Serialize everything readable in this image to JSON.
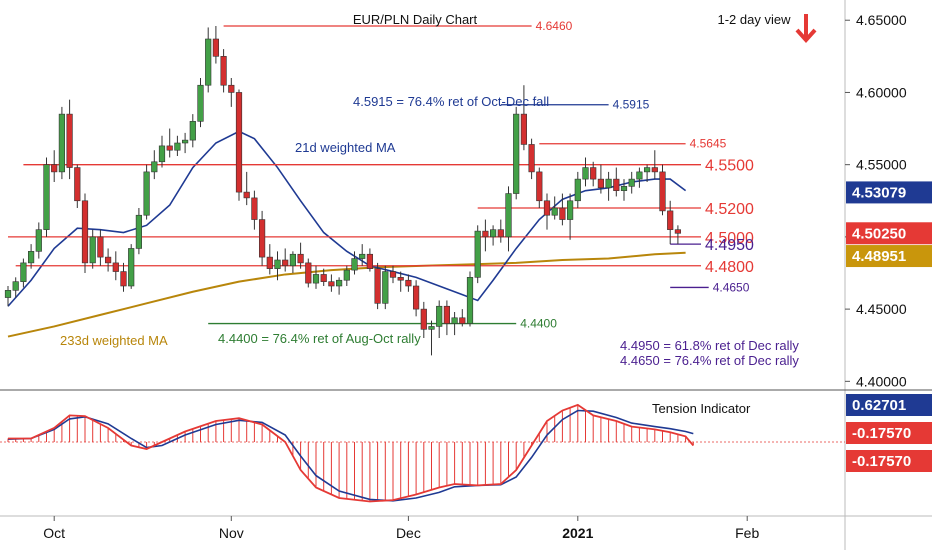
{
  "chart_data": {
    "type": "candlestick",
    "title": "EUR/PLN Daily Chart",
    "view_label": "1-2 day view",
    "view_direction": "down",
    "y_axis": {
      "range": [
        4.394,
        4.664
      ],
      "ticks": [
        4.4,
        4.45,
        4.5,
        4.55,
        4.6,
        4.65
      ],
      "tick_labels": [
        "4.40000",
        "4.45000",
        "4.50000",
        "4.55000",
        "4.60000",
        "4.65000"
      ],
      "position": "right",
      "grid": false
    },
    "x_axis": {
      "labels": [
        "Oct",
        "Nov",
        "Dec",
        "2021",
        "Feb"
      ],
      "label_bars": [
        6,
        29,
        52,
        74,
        96
      ]
    },
    "colors": {
      "up": "#43a047",
      "down": "#d32f2f",
      "resistance": "#e53935",
      "support_purple": "#4a1f8f",
      "ma21": "#1f3a93",
      "ma233": "#b8860b",
      "tension_indicator": "#e53935",
      "tension_signal": "#1f3a93",
      "tension_bars": "#e53935",
      "price_tag_blue": "#1f3a93",
      "price_tag_red": "#e53935",
      "price_tag_gold": "#c9960c"
    },
    "candles": [
      [
        4.458,
        4.466,
        4.452,
        4.463
      ],
      [
        4.463,
        4.472,
        4.458,
        4.469
      ],
      [
        4.469,
        4.485,
        4.465,
        4.482
      ],
      [
        4.482,
        4.495,
        4.478,
        4.49
      ],
      [
        4.49,
        4.51,
        4.485,
        4.505
      ],
      [
        4.505,
        4.555,
        4.5,
        4.55
      ],
      [
        4.55,
        4.56,
        4.538,
        4.545
      ],
      [
        4.545,
        4.59,
        4.54,
        4.585
      ],
      [
        4.585,
        4.595,
        4.54,
        4.548
      ],
      [
        4.548,
        4.55,
        4.52,
        4.525
      ],
      [
        4.525,
        4.53,
        4.475,
        4.482
      ],
      [
        4.482,
        4.505,
        4.478,
        4.5
      ],
      [
        4.5,
        4.505,
        4.48,
        4.486
      ],
      [
        4.486,
        4.492,
        4.476,
        4.482
      ],
      [
        4.482,
        4.49,
        4.47,
        4.476
      ],
      [
        4.476,
        4.482,
        4.462,
        4.466
      ],
      [
        4.466,
        4.495,
        4.464,
        4.492
      ],
      [
        4.492,
        4.52,
        4.488,
        4.515
      ],
      [
        4.515,
        4.55,
        4.512,
        4.545
      ],
      [
        4.545,
        4.56,
        4.54,
        4.552
      ],
      [
        4.552,
        4.57,
        4.548,
        4.563
      ],
      [
        4.563,
        4.575,
        4.555,
        4.56
      ],
      [
        4.56,
        4.57,
        4.556,
        4.565
      ],
      [
        4.565,
        4.572,
        4.558,
        4.567
      ],
      [
        4.567,
        4.585,
        4.562,
        4.58
      ],
      [
        4.58,
        4.61,
        4.576,
        4.605
      ],
      [
        4.605,
        4.645,
        4.6,
        4.637
      ],
      [
        4.637,
        4.646,
        4.62,
        4.625
      ],
      [
        4.625,
        4.63,
        4.6,
        4.605
      ],
      [
        4.605,
        4.61,
        4.59,
        4.6
      ],
      [
        4.6,
        4.602,
        4.525,
        4.531
      ],
      [
        4.531,
        4.545,
        4.522,
        4.527
      ],
      [
        4.527,
        4.532,
        4.505,
        4.512
      ],
      [
        4.512,
        4.518,
        4.48,
        4.486
      ],
      [
        4.486,
        4.495,
        4.474,
        4.478
      ],
      [
        4.478,
        4.49,
        4.47,
        4.484
      ],
      [
        4.484,
        4.492,
        4.476,
        4.48
      ],
      [
        4.48,
        4.49,
        4.475,
        4.488
      ],
      [
        4.488,
        4.496,
        4.478,
        4.482
      ],
      [
        4.482,
        4.485,
        4.465,
        4.468
      ],
      [
        4.468,
        4.48,
        4.464,
        4.474
      ],
      [
        4.474,
        4.478,
        4.466,
        4.469
      ],
      [
        4.469,
        4.474,
        4.462,
        4.466
      ],
      [
        4.466,
        4.472,
        4.46,
        4.47
      ],
      [
        4.47,
        4.48,
        4.466,
        4.477
      ],
      [
        4.477,
        4.49,
        4.474,
        4.485
      ],
      [
        4.485,
        4.495,
        4.48,
        4.488
      ],
      [
        4.488,
        4.492,
        4.476,
        4.478
      ],
      [
        4.478,
        4.482,
        4.45,
        4.454
      ],
      [
        4.454,
        4.48,
        4.45,
        4.476
      ],
      [
        4.476,
        4.48,
        4.468,
        4.472
      ],
      [
        4.472,
        4.476,
        4.462,
        4.47
      ],
      [
        4.47,
        4.474,
        4.462,
        4.466
      ],
      [
        4.466,
        4.47,
        4.445,
        4.45
      ],
      [
        4.45,
        4.455,
        4.43,
        4.436
      ],
      [
        4.436,
        4.442,
        4.418,
        4.438
      ],
      [
        4.438,
        4.456,
        4.43,
        4.452
      ],
      [
        4.452,
        4.456,
        4.432,
        4.44
      ],
      [
        4.44,
        4.448,
        4.432,
        4.444
      ],
      [
        4.444,
        4.45,
        4.438,
        4.44
      ],
      [
        4.44,
        4.476,
        4.438,
        4.472
      ],
      [
        4.472,
        4.508,
        4.468,
        4.504
      ],
      [
        4.504,
        4.512,
        4.49,
        4.5
      ],
      [
        4.5,
        4.508,
        4.494,
        4.505
      ],
      [
        4.505,
        4.512,
        4.496,
        4.5
      ],
      [
        4.5,
        4.535,
        4.49,
        4.53
      ],
      [
        4.53,
        4.59,
        4.526,
        4.585
      ],
      [
        4.585,
        4.605,
        4.56,
        4.564
      ],
      [
        4.564,
        4.568,
        4.54,
        4.545
      ],
      [
        4.545,
        4.548,
        4.52,
        4.525
      ],
      [
        4.525,
        4.53,
        4.505,
        4.515
      ],
      [
        4.515,
        4.528,
        4.512,
        4.52
      ],
      [
        4.52,
        4.53,
        4.508,
        4.512
      ],
      [
        4.512,
        4.53,
        4.498,
        4.525
      ],
      [
        4.525,
        4.545,
        4.52,
        4.54
      ],
      [
        4.54,
        4.555,
        4.535,
        4.548
      ],
      [
        4.548,
        4.552,
        4.535,
        4.54
      ],
      [
        4.54,
        4.55,
        4.53,
        4.534
      ],
      [
        4.534,
        4.545,
        4.525,
        4.54
      ],
      [
        4.54,
        4.548,
        4.528,
        4.532
      ],
      [
        4.532,
        4.54,
        4.525,
        4.535
      ],
      [
        4.535,
        4.545,
        4.53,
        4.54
      ],
      [
        4.54,
        4.548,
        4.534,
        4.545
      ],
      [
        4.545,
        4.55,
        4.538,
        4.548
      ],
      [
        4.548,
        4.56,
        4.54,
        4.545
      ],
      [
        4.545,
        4.55,
        4.515,
        4.518
      ],
      [
        4.518,
        4.525,
        4.495,
        4.505
      ],
      [
        4.505,
        4.508,
        4.495,
        4.5025
      ]
    ],
    "ma21": [
      [
        0,
        4.452
      ],
      [
        3,
        4.47
      ],
      [
        6,
        4.492
      ],
      [
        9,
        4.506
      ],
      [
        12,
        4.505
      ],
      [
        15,
        4.503
      ],
      [
        18,
        4.508
      ],
      [
        21,
        4.522
      ],
      [
        24,
        4.548
      ],
      [
        27,
        4.565
      ],
      [
        30,
        4.573
      ],
      [
        32,
        4.568
      ],
      [
        35,
        4.548
      ],
      [
        38,
        4.525
      ],
      [
        41,
        4.503
      ],
      [
        44,
        4.49
      ],
      [
        47,
        4.48
      ],
      [
        50,
        4.476
      ],
      [
        53,
        4.472
      ],
      [
        56,
        4.466
      ],
      [
        59,
        4.46
      ],
      [
        61,
        4.456
      ],
      [
        63,
        4.47
      ],
      [
        66,
        4.492
      ],
      [
        69,
        4.512
      ],
      [
        72,
        4.526
      ],
      [
        75,
        4.532
      ],
      [
        78,
        4.534
      ],
      [
        81,
        4.538
      ],
      [
        84,
        4.54
      ],
      [
        86,
        4.54
      ],
      [
        88,
        4.532
      ]
    ],
    "ma233": [
      [
        0,
        4.431
      ],
      [
        6,
        4.438
      ],
      [
        12,
        4.446
      ],
      [
        18,
        4.454
      ],
      [
        24,
        4.462
      ],
      [
        30,
        4.469
      ],
      [
        36,
        4.474
      ],
      [
        42,
        4.477
      ],
      [
        48,
        4.479
      ],
      [
        54,
        4.48
      ],
      [
        60,
        4.481
      ],
      [
        66,
        4.482
      ],
      [
        72,
        4.484
      ],
      [
        78,
        4.485
      ],
      [
        84,
        4.488
      ],
      [
        88,
        4.489
      ]
    ],
    "lines": [
      {
        "price": 4.646,
        "from_bar": 28,
        "to_bar": 68,
        "color": "#e53935",
        "label": "4.6460",
        "label_color": "#e53935"
      },
      {
        "price": 4.5915,
        "from_bar": 64,
        "to_bar": 78,
        "color": "#1f3a93",
        "label": "4.5915",
        "label_color": "#1f3a93"
      },
      {
        "price": 4.5645,
        "from_bar": 69,
        "to_bar": 88,
        "color": "#e53935",
        "label": "4.5645",
        "label_color": "#e53935"
      },
      {
        "price": 4.55,
        "from_bar": 2,
        "to_bar": 90,
        "color": "#e53935",
        "label": "4.5500",
        "label_color": "#e53935"
      },
      {
        "price": 4.52,
        "from_bar": 61,
        "to_bar": 90,
        "color": "#e53935",
        "label": "4.5200",
        "label_color": "#e53935"
      },
      {
        "price": 4.5,
        "from_bar": 0,
        "to_bar": 90,
        "color": "#e53935",
        "label": "4.5000",
        "label_color": "#e53935"
      },
      {
        "price": 4.495,
        "from_bar": 86,
        "to_bar": 90,
        "color": "#4a1f8f",
        "label": "4.4950",
        "label_color": "#4a1f8f"
      },
      {
        "price": 4.48,
        "from_bar": 1,
        "to_bar": 90,
        "color": "#e53935",
        "label": "4.4800",
        "label_color": "#e53935"
      },
      {
        "price": 4.465,
        "from_bar": 86,
        "to_bar": 91,
        "color": "#4a1f8f",
        "label": "4.4650",
        "label_color": "#4a1f8f"
      },
      {
        "price": 4.44,
        "from_bar": 26,
        "to_bar": 66,
        "color": "#2e7d32",
        "label": "4.4400",
        "label_color": "#2e7d32"
      }
    ],
    "annotations": [
      {
        "text": "4.5915 = 76.4% ret of Oct-Dec fall",
        "color": "#1f3a93"
      },
      {
        "text": "21d weighted MA",
        "color": "#1f3a93"
      },
      {
        "text": "233d weighted MA",
        "color": "#b8860b"
      },
      {
        "text": "4.4400 = 76.4% ret of Aug-Oct rally",
        "color": "#2e7d32"
      },
      {
        "text": "4.4950 = 61.8% ret of Dec rally",
        "color": "#4a1f8f"
      },
      {
        "text": "4.4650 = 76.4% ret of Dec rally",
        "color": "#4a1f8f"
      }
    ],
    "price_tags": [
      {
        "text": "4.53079",
        "bg": "#1f3a93",
        "value": 4.53079
      },
      {
        "text": "4.50250",
        "bg": "#e53935",
        "value": 4.5025
      },
      {
        "text": "4.48951",
        "bg": "#c9960c",
        "value": 4.48951
      }
    ],
    "tension": {
      "title": "Tension Indicator",
      "tags": [
        {
          "text": "0.62701",
          "bg": "#1f3a93"
        },
        {
          "text": "-0.17570",
          "bg": "#e53935"
        },
        {
          "text": "-0.17570",
          "bg": "#e53935"
        }
      ],
      "indicator": [
        [
          0,
          0.05
        ],
        [
          3,
          0.05
        ],
        [
          6,
          0.2
        ],
        [
          8,
          0.38
        ],
        [
          10,
          0.37
        ],
        [
          13,
          0.2
        ],
        [
          16,
          -0.05
        ],
        [
          18,
          -0.1
        ],
        [
          20,
          0.0
        ],
        [
          23,
          0.15
        ],
        [
          27,
          0.3
        ],
        [
          30,
          0.34
        ],
        [
          33,
          0.25
        ],
        [
          36,
          0.0
        ],
        [
          38,
          -0.4
        ],
        [
          40,
          -0.65
        ],
        [
          43,
          -0.8
        ],
        [
          47,
          -0.85
        ],
        [
          50,
          -0.83
        ],
        [
          53,
          -0.75
        ],
        [
          56,
          -0.65
        ],
        [
          58,
          -0.6
        ],
        [
          61,
          -0.62
        ],
        [
          64,
          -0.6
        ],
        [
          66,
          -0.4
        ],
        [
          68,
          -0.05
        ],
        [
          70,
          0.3
        ],
        [
          72,
          0.45
        ],
        [
          74,
          0.53
        ],
        [
          76,
          0.38
        ],
        [
          79,
          0.3
        ],
        [
          81,
          0.22
        ],
        [
          84,
          0.18
        ],
        [
          86,
          0.14
        ],
        [
          88,
          0.08
        ],
        [
          89,
          -0.05
        ]
      ],
      "signal": [
        [
          0,
          0.04
        ],
        [
          3,
          0.05
        ],
        [
          6,
          0.18
        ],
        [
          8,
          0.33
        ],
        [
          10,
          0.36
        ],
        [
          13,
          0.26
        ],
        [
          16,
          0.05
        ],
        [
          18,
          -0.08
        ],
        [
          20,
          -0.05
        ],
        [
          23,
          0.1
        ],
        [
          27,
          0.25
        ],
        [
          30,
          0.31
        ],
        [
          33,
          0.28
        ],
        [
          36,
          0.1
        ],
        [
          38,
          -0.2
        ],
        [
          40,
          -0.48
        ],
        [
          43,
          -0.7
        ],
        [
          47,
          -0.82
        ],
        [
          50,
          -0.84
        ],
        [
          53,
          -0.8
        ],
        [
          56,
          -0.72
        ],
        [
          58,
          -0.64
        ],
        [
          61,
          -0.62
        ],
        [
          64,
          -0.61
        ],
        [
          66,
          -0.5
        ],
        [
          68,
          -0.22
        ],
        [
          70,
          0.1
        ],
        [
          72,
          0.32
        ],
        [
          74,
          0.45
        ],
        [
          76,
          0.44
        ],
        [
          79,
          0.35
        ],
        [
          81,
          0.27
        ],
        [
          84,
          0.22
        ],
        [
          86,
          0.19
        ],
        [
          88,
          0.15
        ],
        [
          89,
          0.12
        ]
      ],
      "range": [
        -1.0,
        0.7
      ]
    }
  }
}
